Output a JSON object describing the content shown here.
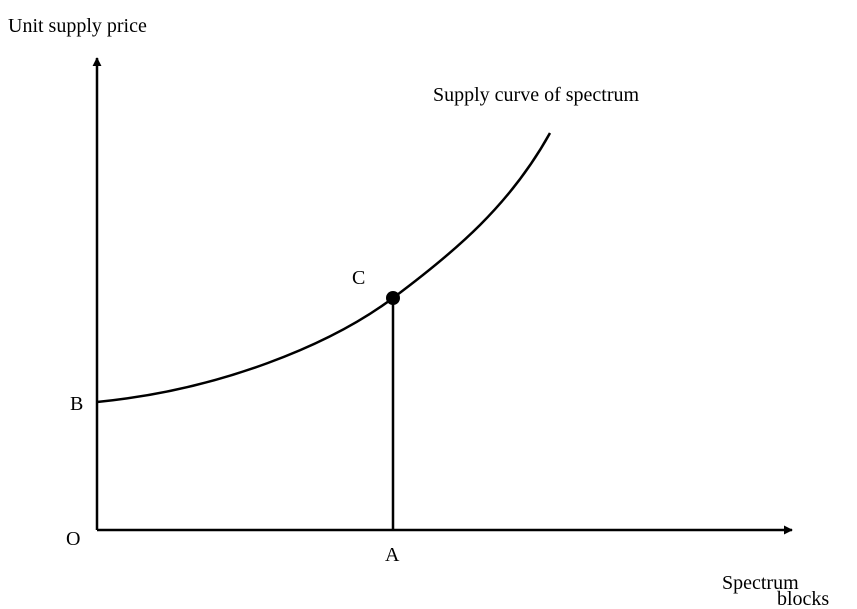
{
  "diagram": {
    "y_axis_label": "Unit supply price",
    "curve_label": "Supply curve of spectrum",
    "points": {
      "C": "C",
      "B": "B",
      "O": "O",
      "A": "A"
    },
    "x_axis_label_lines": [
      "Spectrum",
      "blocks"
    ]
  }
}
